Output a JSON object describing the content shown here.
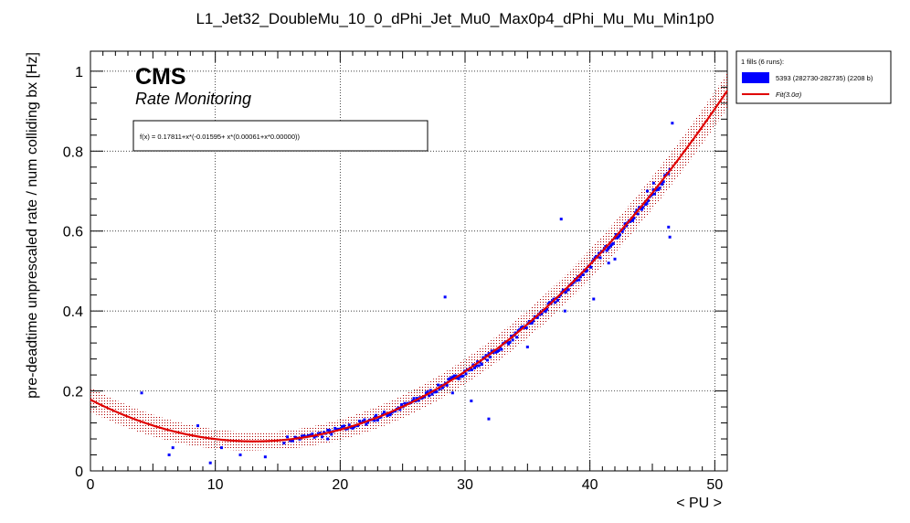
{
  "chart_data": {
    "type": "scatter",
    "title": "L1_Jet32_DoubleMu_10_0_dPhi_Jet_Mu0_Max0p4_dPhi_Mu_Mu_Min1p0",
    "xlabel": "< PU >",
    "ylabel": "pre-deadtime unprescaled rate / num colliding bx [Hz]",
    "xlim": [
      0,
      51
    ],
    "ylim": [
      0,
      1.05
    ],
    "xticks": [
      "0",
      "10",
      "20",
      "30",
      "40",
      "50"
    ],
    "yticks": [
      "0",
      "0.2",
      "0.4",
      "0.6",
      "0.8",
      "1"
    ],
    "grid": true,
    "branding": {
      "experiment": "CMS",
      "subtitle": "Rate Monitoring"
    },
    "fit_formula": "f(x) = 0.17811+x*(-0.01595+ x*(0.00061+x*0.00000))",
    "fit": {
      "c0": 0.17811,
      "c1": -0.01595,
      "c2": 0.00061,
      "c3": 0.0,
      "band": 0.022
    },
    "legend": {
      "placement": "top-right",
      "header": "1 fills (6 runs):",
      "entries": [
        {
          "label": "5393 (282730-282735) (2208 b)",
          "color": "#0000ff",
          "kind": "box"
        },
        {
          "label": "Fit(3.0σ)",
          "color": "#e00000",
          "kind": "line"
        }
      ]
    },
    "series": [
      {
        "color": "#0000ff",
        "outliers": [
          [
            4.1,
            0.195
          ],
          [
            6.3,
            0.04
          ],
          [
            6.6,
            0.058
          ],
          [
            8.6,
            0.113
          ],
          [
            9.6,
            0.02
          ],
          [
            10.5,
            0.058
          ],
          [
            12.0,
            0.04
          ],
          [
            14.0,
            0.035
          ],
          [
            19.0,
            0.08
          ],
          [
            28.4,
            0.435
          ],
          [
            29.0,
            0.195
          ],
          [
            31.9,
            0.13
          ],
          [
            30.5,
            0.175
          ],
          [
            37.7,
            0.63
          ],
          [
            46.3,
            0.61
          ],
          [
            46.4,
            0.585
          ],
          [
            46.6,
            0.87
          ],
          [
            45.1,
            0.72
          ],
          [
            44.6,
            0.7
          ],
          [
            35.0,
            0.31
          ],
          [
            38.0,
            0.4
          ],
          [
            40.3,
            0.43
          ],
          [
            41.5,
            0.52
          ],
          [
            42.0,
            0.53
          ],
          [
            24.0,
            0.14
          ],
          [
            22.8,
            0.135
          ]
        ],
        "trend": {
          "xmin": 15.5,
          "xmax": 46.4,
          "n": 260,
          "scatter": 0.008
        }
      }
    ]
  },
  "colors": {
    "fit_line": "#e00000",
    "band": "#b00000",
    "points": "#0000ff",
    "grid": "#000000"
  }
}
